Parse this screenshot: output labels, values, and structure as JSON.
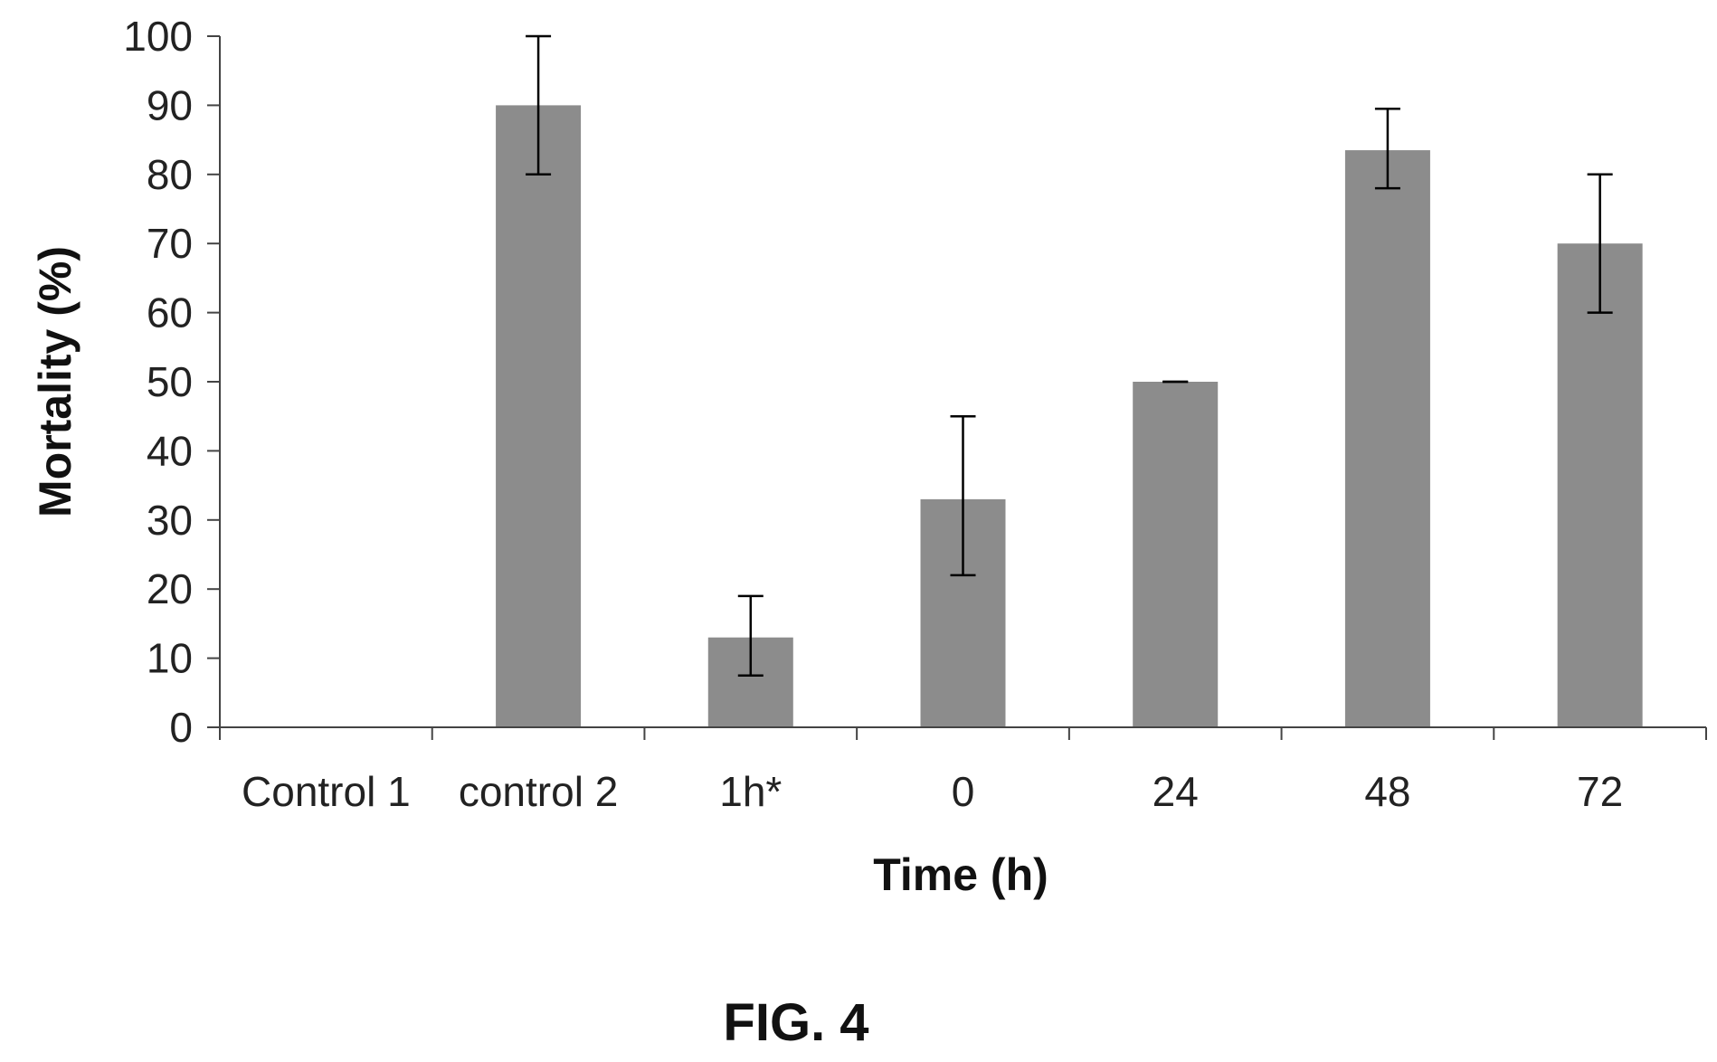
{
  "chart_data": {
    "type": "bar",
    "categories": [
      "Control 1",
      "control 2",
      "1h*",
      "0",
      "24",
      "48",
      "72"
    ],
    "series": [
      {
        "values": [
          0,
          90,
          13,
          33,
          50,
          83.5,
          70
        ],
        "error_low": [
          0,
          80,
          7.5,
          22,
          50,
          78,
          60
        ],
        "error_high": [
          0,
          100,
          19,
          45,
          50,
          89.5,
          80
        ]
      }
    ],
    "xlabel": "Time (h)",
    "ylabel": "Mortality (%)",
    "ylim": [
      0,
      100
    ],
    "yticks": [
      0,
      10,
      20,
      30,
      40,
      50,
      60,
      70,
      80,
      90,
      100
    ],
    "grid": false,
    "legend": "none",
    "bar_color": "#8c8c8c"
  },
  "caption": "FIG. 4"
}
